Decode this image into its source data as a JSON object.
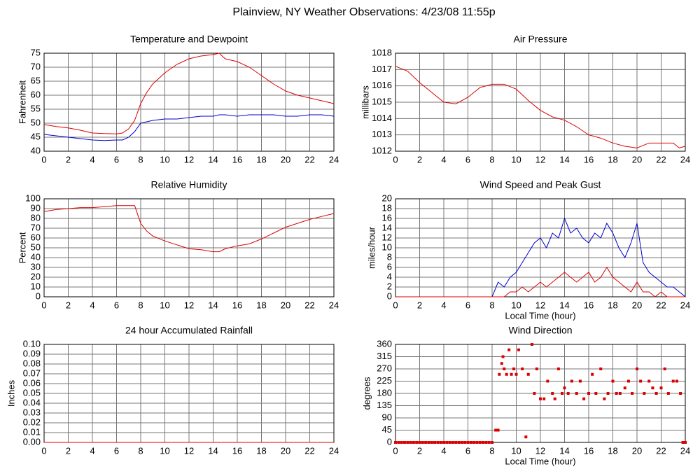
{
  "title": "Plainview, NY Weather Observations: 4/23/08 11:55p",
  "chart_data": [
    {
      "type": "line",
      "title": "Temperature and Dewpoint",
      "ylabel": "Fahrenheit",
      "x": [
        0,
        1,
        2,
        3,
        4,
        5,
        6,
        6.5,
        7,
        7.5,
        8,
        8.5,
        9,
        10,
        11,
        12,
        13,
        14,
        14.5,
        15,
        16,
        17,
        18,
        19,
        20,
        21,
        22,
        23,
        24
      ],
      "series": [
        {
          "color": "#dd0000",
          "values": [
            49.5,
            48.8,
            48.3,
            47.5,
            46.5,
            46.3,
            46.2,
            46.5,
            48,
            51,
            57,
            61,
            64,
            68,
            71,
            73,
            74,
            74.5,
            75,
            73,
            72,
            70,
            67,
            64,
            61.5,
            60,
            59,
            58,
            57
          ]
        },
        {
          "color": "#0000cc",
          "values": [
            46,
            45.5,
            45,
            44.5,
            44,
            43.8,
            44,
            44,
            45,
            47,
            50,
            50.5,
            51,
            51.5,
            51.5,
            52,
            52.5,
            52.5,
            53,
            53,
            52.5,
            53,
            53,
            53,
            52.5,
            52.5,
            53,
            53,
            52.5
          ]
        }
      ],
      "xlim": [
        0,
        24
      ],
      "xticks": [
        0,
        2,
        4,
        6,
        8,
        10,
        12,
        14,
        16,
        18,
        20,
        22,
        24
      ],
      "ylim": [
        40,
        75
      ],
      "yticks": [
        40,
        45,
        50,
        55,
        60,
        65,
        70,
        75
      ],
      "grid": true
    },
    {
      "type": "line",
      "title": "Air Pressure",
      "ylabel": "millibars",
      "x": [
        0,
        1,
        2,
        3,
        4,
        5,
        6,
        7,
        8,
        9,
        10,
        11,
        12,
        13,
        14,
        15,
        16,
        17,
        18,
        19,
        20,
        21,
        22,
        23,
        23.5,
        24
      ],
      "series": [
        {
          "color": "#dd0000",
          "values": [
            1017.2,
            1016.9,
            1016.2,
            1015.6,
            1015,
            1014.9,
            1015.3,
            1015.9,
            1016.1,
            1016.1,
            1015.8,
            1015.1,
            1014.5,
            1014.1,
            1013.9,
            1013.5,
            1013,
            1012.8,
            1012.5,
            1012.3,
            1012.2,
            1012.5,
            1012.5,
            1012.5,
            1012.2,
            1012.3
          ]
        }
      ],
      "xlim": [
        0,
        24
      ],
      "xticks": [
        0,
        2,
        4,
        6,
        8,
        10,
        12,
        14,
        16,
        18,
        20,
        22,
        24
      ],
      "ylim": [
        1012,
        1018
      ],
      "yticks": [
        1012,
        1013,
        1014,
        1015,
        1016,
        1017,
        1018
      ],
      "grid": true
    },
    {
      "type": "line",
      "title": "Relative Humidity",
      "ylabel": "Percent",
      "x": [
        0,
        1,
        2,
        3,
        4,
        5,
        6,
        6.5,
        7,
        7.5,
        8,
        8.5,
        9,
        10,
        11,
        12,
        13,
        14,
        14.5,
        15,
        16,
        17,
        18,
        19,
        20,
        21,
        22,
        23,
        24
      ],
      "series": [
        {
          "color": "#dd0000",
          "values": [
            87,
            89,
            90,
            91,
            91,
            92,
            93,
            93,
            93,
            93,
            75,
            67,
            62,
            57,
            53,
            49,
            48,
            46,
            46,
            49,
            52,
            54,
            59,
            65,
            71,
            75,
            79,
            82,
            85
          ]
        }
      ],
      "xlim": [
        0,
        24
      ],
      "xticks": [
        0,
        2,
        4,
        6,
        8,
        10,
        12,
        14,
        16,
        18,
        20,
        22,
        24
      ],
      "ylim": [
        0,
        100
      ],
      "yticks": [
        0,
        10,
        20,
        30,
        40,
        50,
        60,
        70,
        80,
        90,
        100
      ],
      "grid": true
    },
    {
      "type": "line",
      "title": "Wind Speed and Peak Gust",
      "ylabel": "miles/hour",
      "xlabel": "Local Time (hour)",
      "x": [
        0,
        8,
        8.5,
        9,
        9.5,
        10,
        10.5,
        11,
        11.5,
        12,
        12.5,
        13,
        13.5,
        14,
        14.5,
        15,
        15.5,
        16,
        16.5,
        17,
        17.5,
        18,
        18.5,
        19,
        19.5,
        20,
        20.5,
        21,
        21.5,
        22,
        22.5,
        23,
        23.5,
        24
      ],
      "series": [
        {
          "color": "#0000cc",
          "values": [
            0,
            0,
            3,
            2,
            4,
            5,
            7,
            9,
            11,
            12,
            10,
            13,
            12,
            16,
            13,
            14,
            12,
            11,
            13,
            12,
            15,
            13,
            10,
            8,
            11,
            15,
            7,
            5,
            4,
            3,
            2,
            2,
            1,
            0
          ]
        },
        {
          "color": "#dd0000",
          "values": [
            0,
            0,
            0,
            0,
            1,
            1,
            2,
            1,
            2,
            3,
            2,
            3,
            4,
            5,
            4,
            3,
            4,
            5,
            3,
            4,
            6,
            4,
            3,
            2,
            1,
            3,
            1,
            1,
            0,
            1,
            0,
            0,
            0,
            0
          ]
        }
      ],
      "xlim": [
        0,
        24
      ],
      "xticks": [
        0,
        2,
        4,
        6,
        8,
        10,
        12,
        14,
        16,
        18,
        20,
        22,
        24
      ],
      "ylim": [
        0,
        20
      ],
      "yticks": [
        0,
        2,
        4,
        6,
        8,
        10,
        12,
        14,
        16,
        18,
        20
      ],
      "grid": true
    },
    {
      "type": "line",
      "title": "24 hour Accumulated Rainfall",
      "ylabel": "Inches",
      "x": [
        0,
        24
      ],
      "series": [
        {
          "color": "#dd0000",
          "values": [
            0,
            0
          ]
        }
      ],
      "xlim": [
        0,
        24
      ],
      "xticks": [
        0,
        2,
        4,
        6,
        8,
        10,
        12,
        14,
        16,
        18,
        20,
        22,
        24
      ],
      "ylim": [
        0,
        0.1
      ],
      "yticks": [
        {
          "value": 0,
          "label": "0.00"
        },
        {
          "value": 0.01,
          "label": "0.01"
        },
        {
          "value": 0.02,
          "label": "0.02"
        },
        {
          "value": 0.03,
          "label": "0.03"
        },
        {
          "value": 0.04,
          "label": "0.04"
        },
        {
          "value": 0.05,
          "label": "0.05"
        },
        {
          "value": 0.06,
          "label": "0.06"
        },
        {
          "value": 0.07,
          "label": "0.07"
        },
        {
          "value": 0.08,
          "label": "0.08"
        },
        {
          "value": 0.09,
          "label": "0.09"
        },
        {
          "value": 0.1,
          "label": "0.10"
        }
      ],
      "grid": true
    },
    {
      "type": "scatter",
      "title": "Wind Direction",
      "ylabel": "degrees",
      "xlabel": "Local Time (hour)",
      "x": [
        0,
        0.25,
        0.5,
        0.75,
        1,
        1.25,
        1.5,
        1.75,
        2,
        2.25,
        2.5,
        2.75,
        3,
        3.25,
        3.5,
        3.75,
        4,
        4.25,
        4.5,
        4.75,
        5,
        5.25,
        5.5,
        5.75,
        6,
        6.25,
        6.5,
        6.75,
        7,
        7.25,
        7.5,
        7.75,
        8,
        8.3,
        8.5,
        8.6,
        8.8,
        8.9,
        9,
        9.2,
        9.4,
        9.6,
        9.8,
        10,
        10.2,
        10.5,
        10.8,
        11,
        11.3,
        11.5,
        11.7,
        12,
        12.3,
        12.6,
        13,
        13.2,
        13.5,
        13.8,
        14,
        14.3,
        14.6,
        15,
        15.3,
        15.6,
        16,
        16.3,
        16.6,
        17,
        17.3,
        17.6,
        18,
        18.3,
        18.6,
        19,
        19.3,
        19.6,
        20,
        20.3,
        20.6,
        21,
        21.3,
        21.6,
        22,
        22.3,
        22.6,
        23,
        23.3,
        23.6,
        23.8,
        24
      ],
      "series": [
        {
          "color": "#dd0000",
          "values": [
            0,
            0,
            0,
            0,
            0,
            0,
            0,
            0,
            0,
            0,
            0,
            0,
            0,
            0,
            0,
            0,
            0,
            0,
            0,
            0,
            0,
            0,
            0,
            0,
            0,
            0,
            0,
            0,
            0,
            0,
            0,
            0,
            0,
            45,
            45,
            250,
            290,
            315,
            270,
            250,
            340,
            250,
            270,
            250,
            340,
            270,
            20,
            250,
            360,
            180,
            270,
            160,
            160,
            225,
            180,
            160,
            270,
            180,
            200,
            180,
            225,
            180,
            225,
            160,
            180,
            250,
            180,
            270,
            160,
            180,
            225,
            180,
            180,
            200,
            225,
            180,
            270,
            225,
            180,
            225,
            200,
            180,
            200,
            270,
            180,
            225,
            225,
            180,
            0,
            0
          ]
        }
      ],
      "xlim": [
        0,
        24
      ],
      "xticks": [
        0,
        2,
        4,
        6,
        8,
        10,
        12,
        14,
        16,
        18,
        20,
        22,
        24
      ],
      "ylim": [
        0,
        360
      ],
      "yticks": [
        0,
        45,
        90,
        135,
        180,
        225,
        270,
        315,
        360
      ],
      "grid": true
    }
  ]
}
